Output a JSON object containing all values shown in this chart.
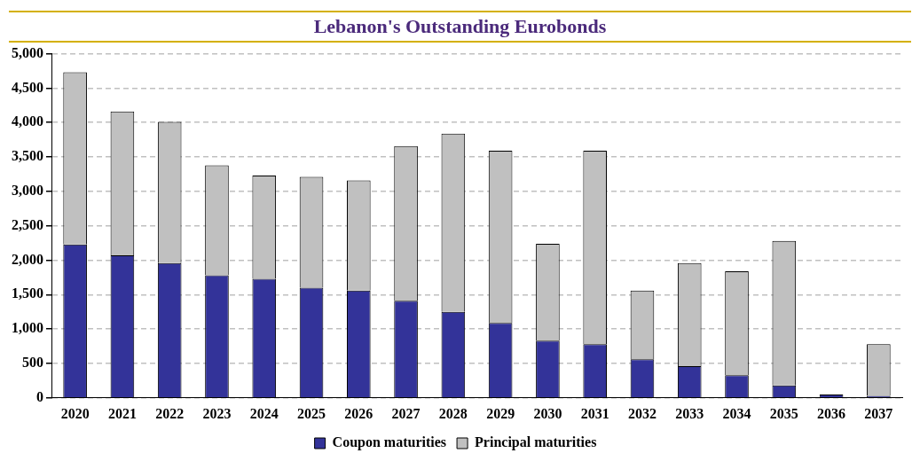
{
  "chart_data": {
    "type": "bar",
    "title": "Lebanon's Outstanding Eurobonds",
    "stacked": true,
    "grid": "y",
    "legend": "bottom",
    "categories": [
      "2020",
      "2021",
      "2022",
      "2023",
      "2024",
      "2025",
      "2026",
      "2027",
      "2028",
      "2029",
      "2030",
      "2031",
      "2032",
      "2033",
      "2034",
      "2035",
      "2036",
      "2037"
    ],
    "series": [
      {
        "name": "Coupon maturities",
        "color": "#333399",
        "values": [
          2230,
          2070,
          1960,
          1780,
          1730,
          1600,
          1560,
          1410,
          1250,
          1090,
          830,
          780,
          560,
          460,
          330,
          180,
          50,
          30
        ]
      },
      {
        "name": "Principal maturities",
        "color": "#c0c0c0",
        "values": [
          2500,
          2090,
          2050,
          1600,
          1500,
          1610,
          1600,
          2250,
          2590,
          2500,
          1410,
          2810,
          1000,
          1500,
          1510,
          2100,
          0,
          750
        ]
      }
    ],
    "ylim": [
      0,
      5000
    ],
    "yticks": [
      {
        "value": 0,
        "label": "0"
      },
      {
        "value": 500,
        "label": "500"
      },
      {
        "value": 1000,
        "label": "1,000"
      },
      {
        "value": 1500,
        "label": "1,500"
      },
      {
        "value": 2000,
        "label": "2,000"
      },
      {
        "value": 2500,
        "label": "2,500"
      },
      {
        "value": 3000,
        "label": "3,000"
      },
      {
        "value": 3500,
        "label": "3,500"
      },
      {
        "value": 4000,
        "label": "4,000"
      },
      {
        "value": 4500,
        "label": "4,500"
      },
      {
        "value": 5000,
        "label": "5,000"
      }
    ]
  }
}
